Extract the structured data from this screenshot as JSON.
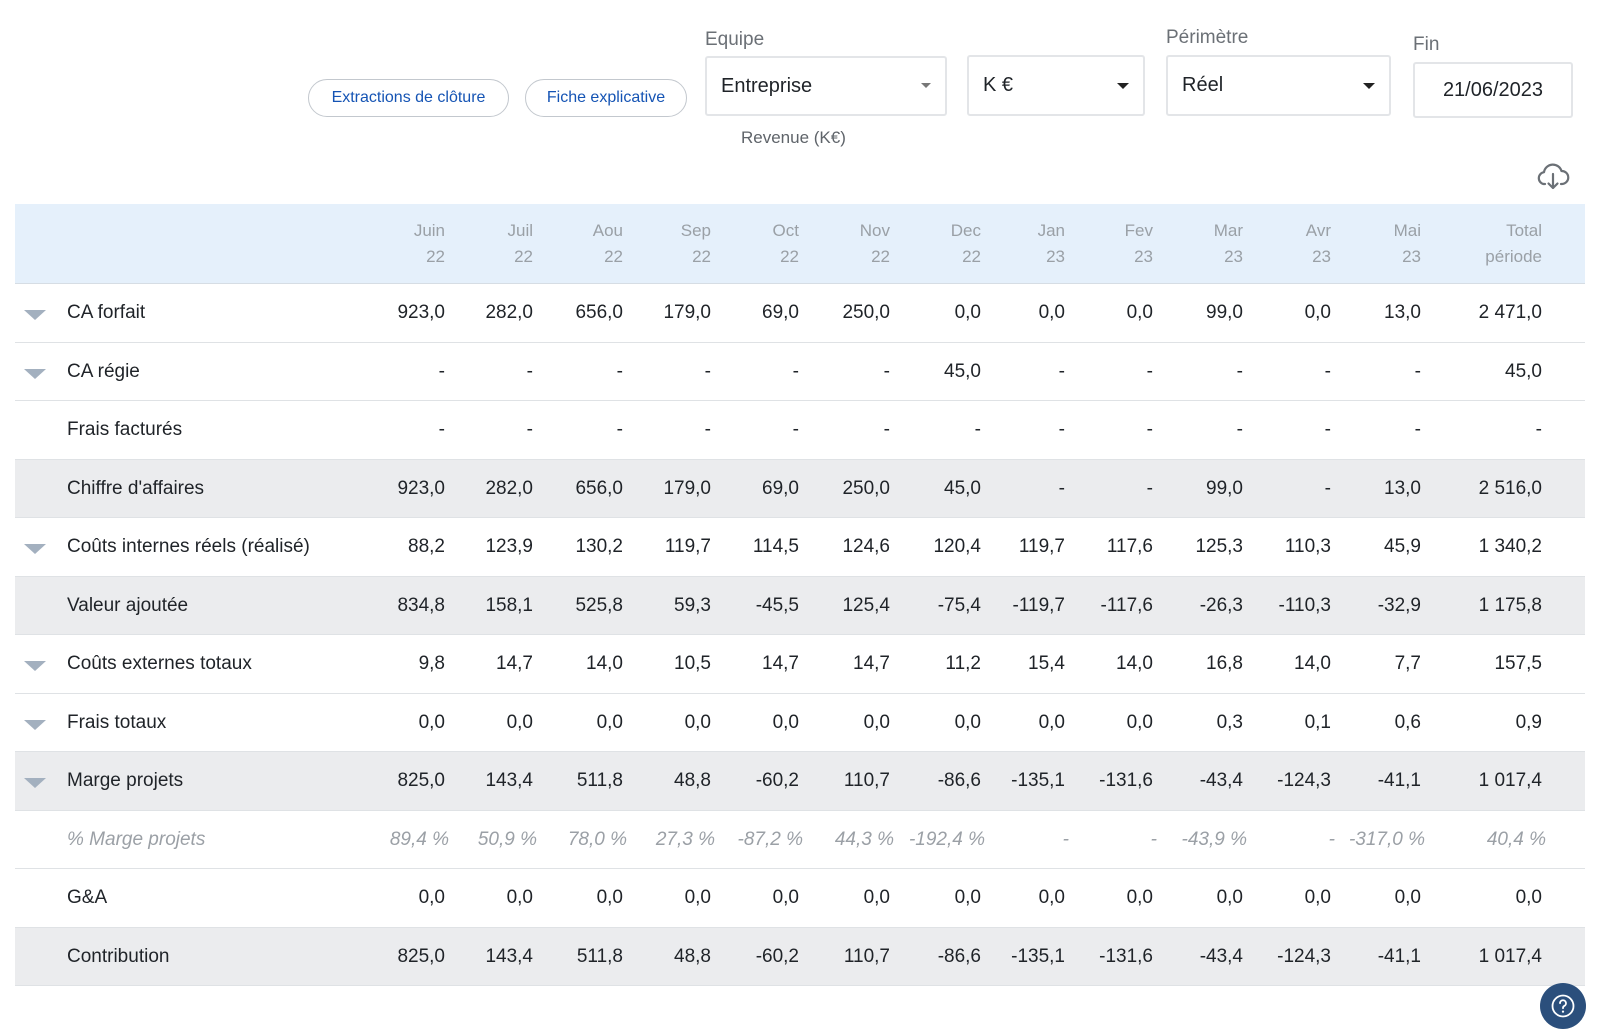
{
  "buttons": {
    "extractions": "Extractions de clôture",
    "fiche": "Fiche explicative"
  },
  "filters": {
    "equipe": {
      "label": "Equipe",
      "value": "Entreprise"
    },
    "unit": {
      "value": "K €"
    },
    "perimetre": {
      "label": "Périmètre",
      "value": "Réel"
    },
    "fin": {
      "label": "Fin",
      "value": "21/06/2023"
    }
  },
  "caption": "Revenue (K€)",
  "icons": {
    "download": "cloud-download-icon",
    "help": "help-circle-icon",
    "expand": "chevron-down-icon"
  },
  "colors": {
    "header_bg": "#e5f0fb",
    "subtotal_bg": "#ebecee",
    "link": "#1554b4",
    "help_bg": "#2b4f7c"
  },
  "table": {
    "columns": [
      {
        "l1": "Juin",
        "l2": "22"
      },
      {
        "l1": "Juil",
        "l2": "22"
      },
      {
        "l1": "Aou",
        "l2": "22"
      },
      {
        "l1": "Sep",
        "l2": "22"
      },
      {
        "l1": "Oct",
        "l2": "22"
      },
      {
        "l1": "Nov",
        "l2": "22"
      },
      {
        "l1": "Dec",
        "l2": "22"
      },
      {
        "l1": "Jan",
        "l2": "23"
      },
      {
        "l1": "Fev",
        "l2": "23"
      },
      {
        "l1": "Mar",
        "l2": "23"
      },
      {
        "l1": "Avr",
        "l2": "23"
      },
      {
        "l1": "Mai",
        "l2": "23"
      },
      {
        "l1": "Total",
        "l2": "période"
      }
    ],
    "rows": [
      {
        "label": "CA forfait",
        "expandable": true,
        "shaded": false,
        "italic": false,
        "values": [
          "923,0",
          "282,0",
          "656,0",
          "179,0",
          "69,0",
          "250,0",
          "0,0",
          "0,0",
          "0,0",
          "99,0",
          "0,0",
          "13,0",
          "2 471,0"
        ]
      },
      {
        "label": "CA régie",
        "expandable": true,
        "shaded": false,
        "italic": false,
        "values": [
          "-",
          "-",
          "-",
          "-",
          "-",
          "-",
          "45,0",
          "-",
          "-",
          "-",
          "-",
          "-",
          "45,0"
        ]
      },
      {
        "label": "Frais facturés",
        "expandable": false,
        "shaded": false,
        "italic": false,
        "values": [
          "-",
          "-",
          "-",
          "-",
          "-",
          "-",
          "-",
          "-",
          "-",
          "-",
          "-",
          "-",
          "-"
        ]
      },
      {
        "label": "Chiffre d'affaires",
        "expandable": false,
        "shaded": true,
        "italic": false,
        "values": [
          "923,0",
          "282,0",
          "656,0",
          "179,0",
          "69,0",
          "250,0",
          "45,0",
          "-",
          "-",
          "99,0",
          "-",
          "13,0",
          "2 516,0"
        ]
      },
      {
        "label": "Coûts internes réels (réalisé)",
        "expandable": true,
        "shaded": false,
        "italic": false,
        "values": [
          "88,2",
          "123,9",
          "130,2",
          "119,7",
          "114,5",
          "124,6",
          "120,4",
          "119,7",
          "117,6",
          "125,3",
          "110,3",
          "45,9",
          "1 340,2"
        ]
      },
      {
        "label": "Valeur ajoutée",
        "expandable": false,
        "shaded": true,
        "italic": false,
        "values": [
          "834,8",
          "158,1",
          "525,8",
          "59,3",
          "-45,5",
          "125,4",
          "-75,4",
          "-119,7",
          "-117,6",
          "-26,3",
          "-110,3",
          "-32,9",
          "1 175,8"
        ]
      },
      {
        "label": "Coûts externes totaux",
        "expandable": true,
        "shaded": false,
        "italic": false,
        "values": [
          "9,8",
          "14,7",
          "14,0",
          "10,5",
          "14,7",
          "14,7",
          "11,2",
          "15,4",
          "14,0",
          "16,8",
          "14,0",
          "7,7",
          "157,5"
        ]
      },
      {
        "label": "Frais totaux",
        "expandable": true,
        "shaded": false,
        "italic": false,
        "values": [
          "0,0",
          "0,0",
          "0,0",
          "0,0",
          "0,0",
          "0,0",
          "0,0",
          "0,0",
          "0,0",
          "0,3",
          "0,1",
          "0,6",
          "0,9"
        ]
      },
      {
        "label": "Marge projets",
        "expandable": true,
        "shaded": true,
        "italic": false,
        "values": [
          "825,0",
          "143,4",
          "511,8",
          "48,8",
          "-60,2",
          "110,7",
          "-86,6",
          "-135,1",
          "-131,6",
          "-43,4",
          "-124,3",
          "-41,1",
          "1 017,4"
        ]
      },
      {
        "label": "% Marge projets",
        "expandable": false,
        "shaded": false,
        "italic": true,
        "values": [
          "89,4 %",
          "50,9 %",
          "78,0 %",
          "27,3 %",
          "-87,2 %",
          "44,3 %",
          "-192,4 %",
          "-",
          "-",
          "-43,9 %",
          "-",
          "-317,0 %",
          "40,4 %"
        ]
      },
      {
        "label": "G&A",
        "expandable": false,
        "shaded": false,
        "italic": false,
        "values": [
          "0,0",
          "0,0",
          "0,0",
          "0,0",
          "0,0",
          "0,0",
          "0,0",
          "0,0",
          "0,0",
          "0,0",
          "0,0",
          "0,0",
          "0,0"
        ]
      },
      {
        "label": "Contribution",
        "expandable": false,
        "shaded": true,
        "italic": false,
        "values": [
          "825,0",
          "143,4",
          "511,8",
          "48,8",
          "-60,2",
          "110,7",
          "-86,6",
          "-135,1",
          "-131,6",
          "-43,4",
          "-124,3",
          "-41,1",
          "1 017,4"
        ]
      }
    ]
  }
}
